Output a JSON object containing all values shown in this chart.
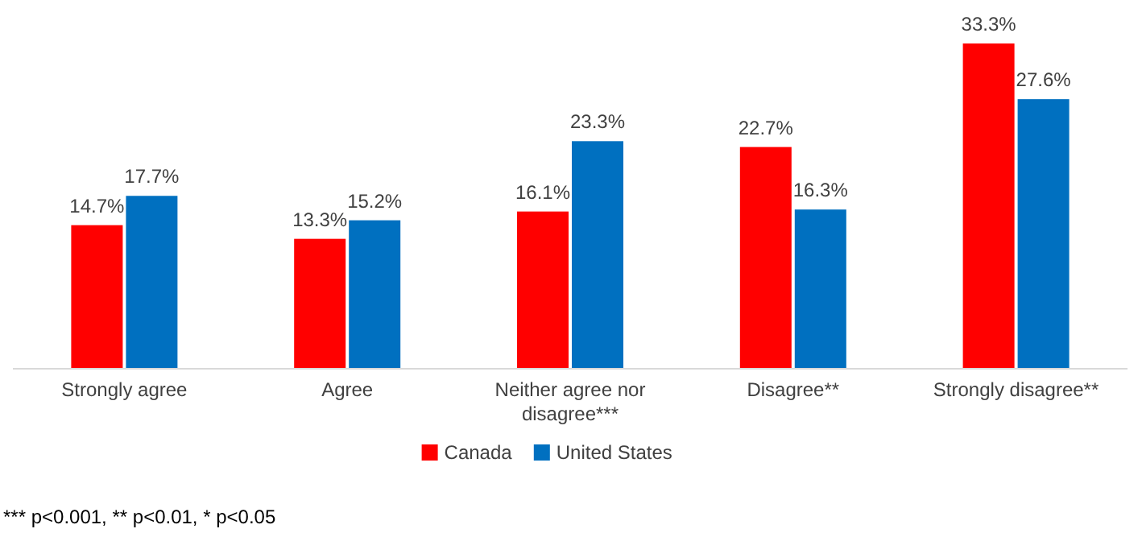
{
  "chart_data": {
    "type": "bar",
    "categories": [
      "Strongly agree",
      "Agree",
      "Neither agree nor disagree***",
      "Disagree**",
      "Strongly disagree**"
    ],
    "series": [
      {
        "name": "Canada",
        "color": "#ff0000",
        "values": [
          14.7,
          13.3,
          16.1,
          22.7,
          33.3
        ],
        "value_labels": [
          "14.7%",
          "13.3%",
          "16.1%",
          "22.7%",
          "33.3%"
        ]
      },
      {
        "name": "United States",
        "color": "#0070c0",
        "values": [
          17.7,
          15.2,
          23.3,
          16.3,
          27.6
        ],
        "value_labels": [
          "17.7%",
          "15.2%",
          "23.3%",
          "16.3%",
          "27.6%"
        ]
      }
    ],
    "legend": "bottom",
    "annotations": [
      "*** p<0.001, ** p<0.01, * p<0.05"
    ]
  }
}
